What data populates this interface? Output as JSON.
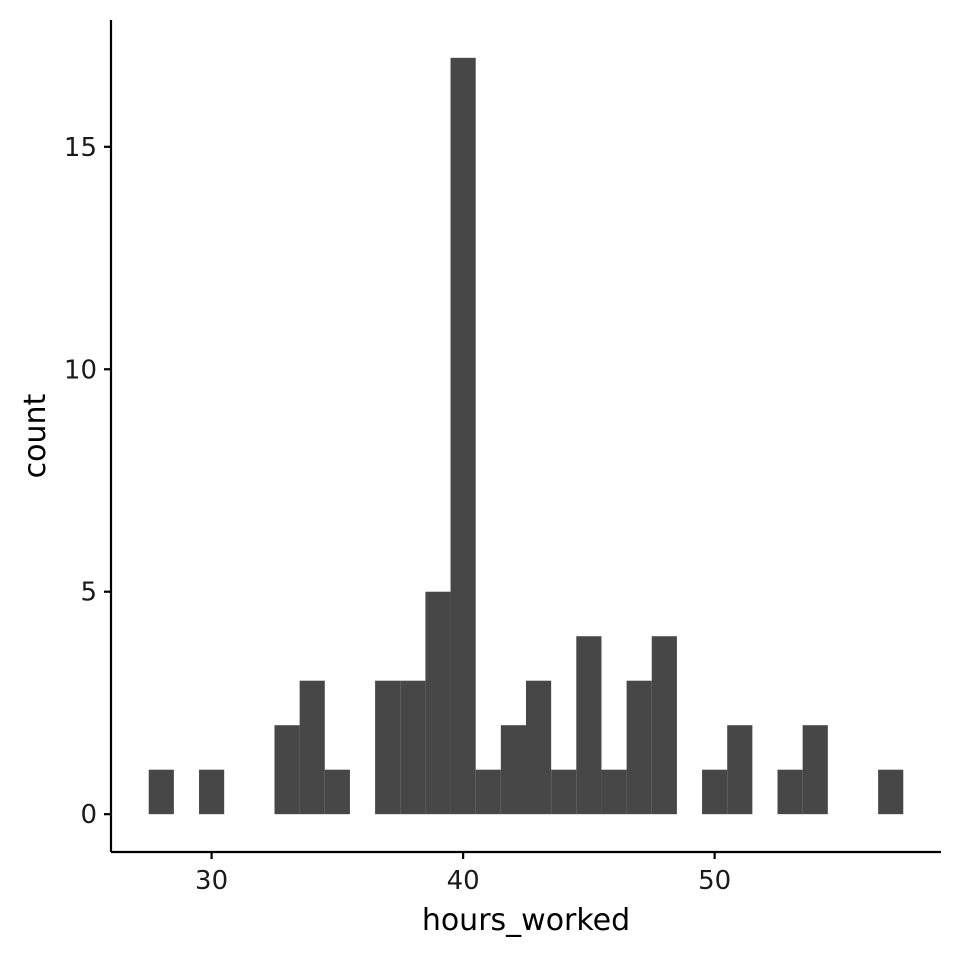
{
  "chart_data": {
    "type": "bar",
    "subtype": "histogram",
    "xlabel": "hours_worked",
    "ylabel": "count",
    "bin_width": 1,
    "xlim": [
      26,
      59
    ],
    "ylim": [
      -0.85,
      17.85
    ],
    "x_ticks": [
      30,
      40,
      50
    ],
    "x_tick_labels": [
      "30",
      "40",
      "50"
    ],
    "y_ticks": [
      0,
      5,
      10,
      15
    ],
    "y_tick_labels": [
      "0",
      "5",
      "10",
      "15"
    ],
    "bins": [
      {
        "x": 28,
        "count": 1
      },
      {
        "x": 29,
        "count": 0
      },
      {
        "x": 30,
        "count": 1
      },
      {
        "x": 31,
        "count": 0
      },
      {
        "x": 32,
        "count": 0
      },
      {
        "x": 33,
        "count": 2
      },
      {
        "x": 34,
        "count": 3
      },
      {
        "x": 35,
        "count": 1
      },
      {
        "x": 36,
        "count": 0
      },
      {
        "x": 37,
        "count": 3
      },
      {
        "x": 38,
        "count": 3
      },
      {
        "x": 39,
        "count": 5
      },
      {
        "x": 40,
        "count": 17
      },
      {
        "x": 41,
        "count": 1
      },
      {
        "x": 42,
        "count": 2
      },
      {
        "x": 43,
        "count": 3
      },
      {
        "x": 44,
        "count": 1
      },
      {
        "x": 45,
        "count": 4
      },
      {
        "x": 46,
        "count": 1
      },
      {
        "x": 47,
        "count": 3
      },
      {
        "x": 48,
        "count": 4
      },
      {
        "x": 49,
        "count": 0
      },
      {
        "x": 50,
        "count": 1
      },
      {
        "x": 51,
        "count": 2
      },
      {
        "x": 52,
        "count": 0
      },
      {
        "x": 53,
        "count": 1
      },
      {
        "x": 54,
        "count": 2
      },
      {
        "x": 55,
        "count": 0
      },
      {
        "x": 56,
        "count": 0
      },
      {
        "x": 57,
        "count": 1
      }
    ],
    "bar_color": "#474747",
    "grid": false,
    "legend": "none"
  }
}
